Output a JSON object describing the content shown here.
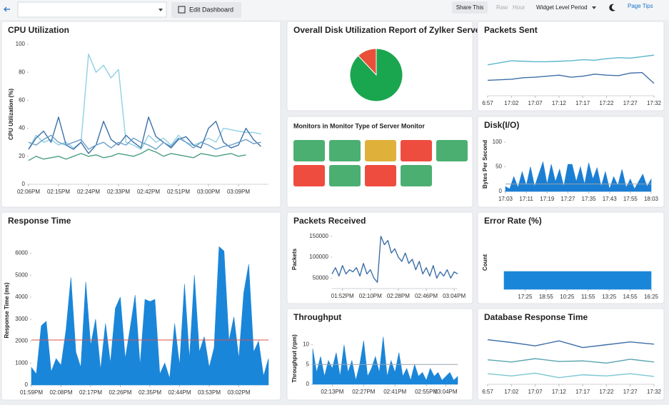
{
  "toolbar": {
    "edit": "Edit Dashboard",
    "share": "Share This",
    "raw": "Raw",
    "hour": "Hour",
    "period": "Widget Level Period",
    "tips": "Page Tips"
  },
  "monitors": {
    "title": "Monitors in Monitor Type of Server Monitor",
    "tiles": [
      "#4caf72",
      "#4caf72",
      "#e0b13a",
      "#ef4c40",
      "#4caf72",
      "#ef4c40",
      "#4caf72",
      "#ef4c40",
      "#4caf72"
    ]
  },
  "chart_data": [
    {
      "type": "line",
      "title": "CPU Utilization",
      "ylabel": "CPU Utilization (%)",
      "xlim": [
        0,
        32
      ],
      "ylim": [
        0,
        100
      ],
      "yticks": [
        0,
        20,
        40,
        60,
        80,
        100
      ],
      "xticks": [
        {
          "value": 0,
          "label": "02:06PM"
        },
        {
          "value": 4,
          "label": "02:15PM"
        },
        {
          "value": 8,
          "label": "02:24PM"
        },
        {
          "value": 12,
          "label": "02:33PM"
        },
        {
          "value": 16,
          "label": "02:42PM"
        },
        {
          "value": 20,
          "label": "02:51PM"
        },
        {
          "value": 24,
          "label": "03:00PM"
        },
        {
          "value": 28,
          "label": "03:09PM"
        }
      ],
      "series": [
        {
          "color": "#8fd0e4",
          "values": [
            25,
            35,
            30,
            32,
            28,
            30,
            26,
            30,
            93,
            80,
            85,
            76,
            82,
            30,
            28,
            25,
            35,
            30,
            33,
            28,
            35,
            30,
            28,
            30,
            33,
            30,
            40,
            39,
            38,
            37,
            37,
            36
          ]
        },
        {
          "color": "#3d6fa8",
          "values": [
            25,
            33,
            38,
            30,
            48,
            28,
            25,
            30,
            22,
            28,
            45,
            32,
            28,
            35,
            30,
            26,
            48,
            34,
            30,
            26,
            32,
            34,
            28,
            26,
            40,
            45,
            30,
            26,
            28,
            40,
            32,
            27
          ]
        },
        {
          "color": "#6a9fc9",
          "values": [
            30,
            28,
            32,
            35,
            30,
            28,
            30,
            32,
            25,
            28,
            30,
            26,
            30,
            28,
            33,
            30,
            28,
            25,
            30,
            27,
            33,
            30,
            26,
            30,
            28,
            25,
            27,
            28,
            30,
            32,
            29,
            30
          ]
        },
        {
          "color": "#4a9e82",
          "values": [
            17,
            20,
            18,
            19,
            20,
            18,
            20,
            22,
            20,
            21,
            19,
            20,
            22,
            21,
            20,
            22,
            25,
            23,
            20,
            22,
            21,
            20,
            19,
            22,
            21,
            20,
            21,
            22,
            20,
            21
          ]
        }
      ]
    },
    {
      "type": "pie",
      "title": "Overall Disk Utilization Report of Zylker Server",
      "series": [
        {
          "color": "#e8503a",
          "values": [
            12
          ]
        },
        {
          "color": "#1aa64f",
          "values": [
            88
          ]
        }
      ]
    },
    {
      "type": "line",
      "title": "Packets Sent",
      "xlim": [
        0,
        14
      ],
      "ylim": [
        0,
        100
      ],
      "xticks": [
        {
          "value": 0,
          "label": "6:57"
        },
        {
          "value": 2,
          "label": "17:02"
        },
        {
          "value": 4,
          "label": "17:07"
        },
        {
          "value": 6,
          "label": "17:12"
        },
        {
          "value": 8,
          "label": "17:17"
        },
        {
          "value": 10,
          "label": "17:22"
        },
        {
          "value": 12,
          "label": "17:27"
        },
        {
          "value": 14,
          "label": "17:32"
        }
      ],
      "series": [
        {
          "color": "#5bb7c9",
          "values": [
            60,
            64,
            68,
            67,
            66,
            66,
            67,
            68,
            70,
            69,
            72,
            74,
            73,
            76,
            79
          ]
        },
        {
          "color": "#3d6fa8",
          "values": [
            30,
            31,
            32,
            35,
            36,
            38,
            40,
            36,
            38,
            42,
            40,
            39,
            44,
            45,
            24
          ]
        }
      ]
    },
    {
      "type": "area",
      "title": "Disk(I/O)",
      "ylabel": "Bytes Per Second",
      "xlim": [
        0,
        35
      ],
      "ylim": [
        0,
        110
      ],
      "yticks": [
        0,
        50,
        100
      ],
      "xticks": [
        {
          "value": 0,
          "label": "17:03"
        },
        {
          "value": 5,
          "label": "17:11"
        },
        {
          "value": 10,
          "label": "17:19"
        },
        {
          "value": 15,
          "label": "17:27"
        },
        {
          "value": 20,
          "label": "17:35"
        },
        {
          "value": 25,
          "label": "17:43"
        },
        {
          "value": 30,
          "label": "17:55"
        },
        {
          "value": 35,
          "label": "18:03"
        }
      ],
      "reference_line": {
        "value": 15,
        "color": "#9aa4ad"
      },
      "series": [
        {
          "color": "#1a7fd4",
          "values": [
            10,
            5,
            30,
            8,
            40,
            12,
            50,
            10,
            35,
            60,
            15,
            55,
            20,
            45,
            10,
            55,
            55,
            20,
            50,
            15,
            58,
            25,
            48,
            10,
            40,
            5,
            30,
            12,
            45,
            8,
            25,
            5,
            20,
            35,
            10,
            25
          ]
        }
      ]
    },
    {
      "type": "area",
      "title": "Response Time",
      "ylabel": "Response Time (ms)",
      "xlim": [
        0,
        48
      ],
      "ylim": [
        0,
        6800
      ],
      "yticks": [
        0,
        1000,
        2000,
        3000,
        4000,
        5000,
        6000
      ],
      "xticks": [
        {
          "value": 0,
          "label": "01:59PM"
        },
        {
          "value": 6,
          "label": "02:08PM"
        },
        {
          "value": 12,
          "label": "02:17PM"
        },
        {
          "value": 18,
          "label": "02:26PM"
        },
        {
          "value": 24,
          "label": "02:35PM"
        },
        {
          "value": 30,
          "label": "02:44PM"
        },
        {
          "value": 36,
          "label": "03:53PM"
        },
        {
          "value": 42,
          "label": "03:02PM"
        }
      ],
      "reference_line": {
        "value": 2050,
        "color": "#d9534f"
      },
      "series": [
        {
          "color": "#1a86d9",
          "values": [
            800,
            500,
            2700,
            2900,
            600,
            1200,
            900,
            2500,
            4900,
            1500,
            800,
            4700,
            1800,
            3000,
            700,
            2800,
            1000,
            3500,
            4000,
            1200,
            2600,
            4100,
            900,
            3900,
            3800,
            3900,
            500,
            1000,
            300,
            2800,
            900,
            4600,
            1200,
            5000,
            1500,
            2200,
            800,
            1700,
            6300,
            6100,
            2000,
            3100,
            1200,
            4200,
            5500,
            1500,
            2000,
            400,
            1200
          ]
        }
      ]
    },
    {
      "type": "line",
      "title": "Packets Received",
      "ylabel": "Packets",
      "xlim": [
        0,
        36
      ],
      "ylim": [
        25000,
        165000
      ],
      "yticks": [
        50000,
        100000,
        150000
      ],
      "xticks": [
        {
          "value": 3,
          "label": "01:52PM"
        },
        {
          "value": 11,
          "label": "02:10PM"
        },
        {
          "value": 19,
          "label": "02:28PM"
        },
        {
          "value": 27,
          "label": "02:46PM"
        },
        {
          "value": 35,
          "label": "03:04PM"
        }
      ],
      "series": [
        {
          "color": "#3d6fa8",
          "values": [
            60000,
            75000,
            55000,
            80000,
            60000,
            70000,
            65000,
            75000,
            55000,
            85000,
            60000,
            70000,
            50000,
            40000,
            150000,
            130000,
            140000,
            110000,
            120000,
            100000,
            90000,
            110000,
            85000,
            95000,
            70000,
            90000,
            60000,
            75000,
            55000,
            80000,
            50000,
            65000,
            55000,
            70000,
            50000,
            65000,
            60000
          ]
        }
      ]
    },
    {
      "type": "area",
      "title": "Error Rate (%)",
      "ylabel": "Count",
      "xlim": [
        0,
        7
      ],
      "ylim": [
        0,
        3
      ],
      "xticks": [
        {
          "value": 1,
          "label": "17:25"
        },
        {
          "value": 2,
          "label": "18:55"
        },
        {
          "value": 3,
          "label": "10:25"
        },
        {
          "value": 4,
          "label": "11:55"
        },
        {
          "value": 5,
          "label": "13:25"
        },
        {
          "value": 6,
          "label": "14:55"
        },
        {
          "value": 7,
          "label": "16:25"
        }
      ],
      "series": [
        {
          "color": "#1a86d9",
          "values": [
            1,
            1,
            1,
            1,
            1,
            1,
            1,
            1
          ]
        }
      ]
    },
    {
      "type": "area",
      "title": "Throughput",
      "ylabel": "Throughput (rpm)",
      "xlim": [
        0,
        37
      ],
      "ylim": [
        0,
        13
      ],
      "yticks": [
        0,
        5,
        10
      ],
      "xticks": [
        {
          "value": 5,
          "label": "02:13PM"
        },
        {
          "value": 13,
          "label": "02:27PM"
        },
        {
          "value": 21,
          "label": "02:41PM"
        },
        {
          "value": 29,
          "label": "02:55PM"
        },
        {
          "value": 34,
          "label": "03:04PM"
        }
      ],
      "reference_line": {
        "value": 5,
        "color": "#9aa4ad"
      },
      "series": [
        {
          "color": "#1a86d9",
          "values": [
            9,
            3,
            7,
            2,
            6,
            4,
            8,
            2,
            10,
            3,
            6,
            1,
            5,
            11,
            2,
            4,
            7,
            3,
            12,
            2,
            6,
            3,
            8,
            2,
            4,
            1,
            5,
            2,
            3,
            1,
            4,
            2,
            3,
            1,
            2,
            3,
            1,
            2
          ]
        }
      ]
    },
    {
      "type": "line",
      "title": "Database Response Time",
      "xlim": [
        0,
        7
      ],
      "ylim": [
        0,
        100
      ],
      "xticks": [
        {
          "value": 0,
          "label": "6:57"
        },
        {
          "value": 1,
          "label": "17:02"
        },
        {
          "value": 2,
          "label": "17:07"
        },
        {
          "value": 3,
          "label": "17:12"
        },
        {
          "value": 4,
          "label": "17:17"
        },
        {
          "value": 5,
          "label": "17:22"
        },
        {
          "value": 6,
          "label": "17:27"
        },
        {
          "value": 7,
          "label": "17:32"
        }
      ],
      "series": [
        {
          "color": "#3d6fa8",
          "values": [
            80,
            75,
            69,
            78,
            66,
            71,
            76,
            72
          ]
        },
        {
          "color": "#5aa5b0",
          "values": [
            44,
            40,
            46,
            41,
            42,
            38,
            45,
            40
          ]
        },
        {
          "color": "#7cc6d1",
          "values": [
            19,
            15,
            20,
            12,
            17,
            15,
            19,
            14
          ]
        }
      ]
    }
  ]
}
